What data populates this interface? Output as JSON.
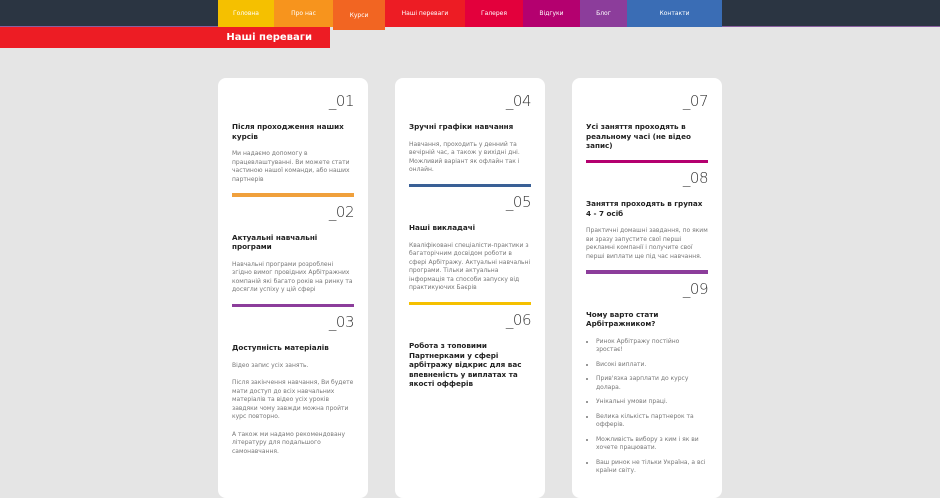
{
  "nav": {
    "items": [
      {
        "label": "Головна",
        "color": "#f5c000",
        "width": 56
      },
      {
        "label": "Про нас",
        "color": "#f7941d",
        "width": 59
      },
      {
        "label": "Курси",
        "color": "#f26522",
        "width": 52
      },
      {
        "label": "Наші переваги",
        "color": "#ed1c24",
        "width": 80
      },
      {
        "label": "Галерея",
        "color": "#e3003c",
        "width": 58
      },
      {
        "label": "Відгуки",
        "color": "#b4006f",
        "width": 57
      },
      {
        "label": "Блог",
        "color": "#8c3d9b",
        "width": 47
      },
      {
        "label": "Контакти",
        "color": "#3a6db5",
        "width": 95
      }
    ]
  },
  "banner": {
    "title": "Наші переваги"
  },
  "cards": [
    {
      "blocks": [
        {
          "num": "_01",
          "title": "Після проходження наших курсів",
          "paras": [
            "Ми надаємо допомогу в працевлаштуванні. Ви можете стати частиною нашої команди, або наших партнерів"
          ],
          "bar": "#f0a03c"
        },
        {
          "num": "_02",
          "title": "Актуальні навчальні програми",
          "paras": [
            "Навчальні програми розроблені згідно вимог провідних Арбітражних компаній які багато років на ринку та досягли успіху у цій сфері"
          ],
          "bar": "#8c3d9b"
        },
        {
          "num": "_03",
          "title": "Доступність матеріалів",
          "paras": [
            "Відео запис усіх занять.",
            "Після закінчення навчання, Ви будете мати доступ до всіх навчальних матеріалів та відео усіх уроків завдяки чому завжди можна пройти курс повторно.",
            "А також ми надамо рекомендовану літературу для подальшого самонавчання."
          ]
        }
      ]
    },
    {
      "blocks": [
        {
          "num": "_04",
          "title": "Зручні графіки навчання",
          "paras": [
            "Навчання, проходить у денний та вечірній час, а також у вихідні дні. Можливий варіант як офлайн так і онлайн."
          ],
          "bar": "#3a6096"
        },
        {
          "num": "_05",
          "title": "Наші викладачі",
          "paras": [
            "Кваліфіковані спеціалісти-практики з багаторічним досвідом роботи в сфері Арбітражу. Актуальні навчальні програми. Тільки актуальна інформація та способи запуску від практикуючих Баєрів"
          ],
          "bar": "#f5c000"
        },
        {
          "num": "_06",
          "title": "Робота з топовими Партнерками у сфері арбітражу відкрис для вас впевненість у виплатах та якості офферів",
          "paras": []
        }
      ]
    },
    {
      "blocks": [
        {
          "num": "_07",
          "title": "Усі заняття проходять в реальному часі (не відео запис)",
          "paras": [],
          "bar": "#b4006f"
        },
        {
          "num": "_08",
          "title": "Заняття проходять в групах 4 - 7 осіб",
          "paras": [
            "Практичні домашні завдання, по яким ви зразу запустите свої перші рекламні компанії і получите свої перші виплати ще під час навчання."
          ],
          "bar": "#8c3d9b"
        },
        {
          "num": "_09",
          "title": "Чому варто стати Арбітражником?",
          "paras": [],
          "list": [
            "Ринок Арбітражу постійно зростає!",
            "Високі виплати.",
            "Прив'язка зарплати до курсу долара.",
            "Унікальні умови праці.",
            "Велика кількість партнерок та офферів.",
            "Можливість вибору з ким і як ви хочете працювати.",
            "Ваш ринок не тільки Україна, а всі країни світу."
          ]
        }
      ]
    }
  ]
}
